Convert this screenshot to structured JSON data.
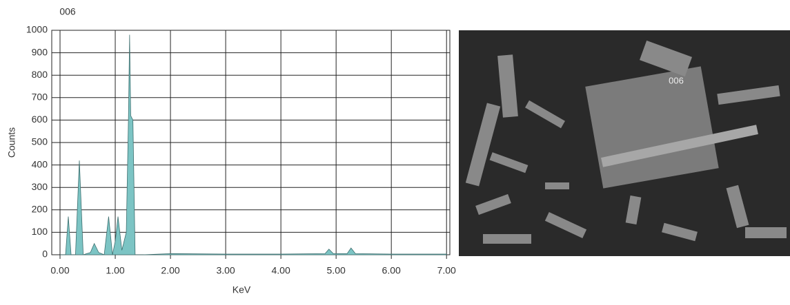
{
  "chart_data": {
    "type": "area",
    "title": "006",
    "x_label": "KeV",
    "y_label": "Counts",
    "color": "#7cc4c4",
    "x": [
      0,
      0.1,
      0.15,
      0.2,
      0.28,
      0.33,
      0.35,
      0.37,
      0.42,
      0.55,
      0.62,
      0.7,
      0.8,
      0.88,
      0.95,
      1.0,
      1.05,
      1.12,
      1.2,
      1.24,
      1.26,
      1.28,
      1.32,
      1.36,
      1.5,
      2,
      3,
      4,
      4.8,
      4.87,
      4.95,
      5.2,
      5.27,
      5.35,
      6,
      7
    ],
    "values": [
      0,
      0,
      170,
      0,
      0,
      300,
      420,
      300,
      0,
      10,
      50,
      10,
      0,
      170,
      0,
      60,
      170,
      20,
      100,
      620,
      980,
      620,
      600,
      0,
      0,
      5,
      3,
      3,
      5,
      25,
      5,
      5,
      30,
      5,
      3,
      3
    ],
    "xlim": [
      -0.15,
      7.06
    ],
    "ylim": [
      0,
      1000
    ],
    "xticks": [
      {
        "value": 0,
        "label": "0.00"
      },
      {
        "value": 1,
        "label": "1.00"
      },
      {
        "value": 2,
        "label": "2.00"
      },
      {
        "value": 3,
        "label": "3.00"
      },
      {
        "value": 4,
        "label": "4.00"
      },
      {
        "value": 5,
        "label": "5.00"
      },
      {
        "value": 6,
        "label": "6.00"
      },
      {
        "value": 7,
        "label": "7.00"
      }
    ],
    "yticks": [
      0,
      100,
      200,
      300,
      400,
      500,
      600,
      700,
      800,
      900,
      1000
    ],
    "grid": true
  },
  "image": {
    "label": "006"
  }
}
